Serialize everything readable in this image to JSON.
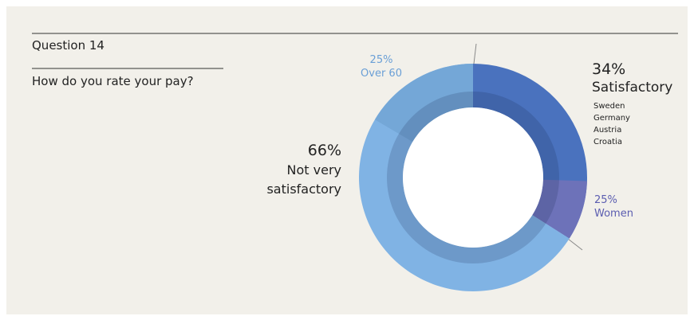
{
  "chart_data": {
    "type": "donut",
    "title": "Question 14",
    "subtitle": "How do you rate your pay?",
    "categories": [
      "Satisfactory",
      "Not very satisfactory"
    ],
    "values": [
      34,
      66
    ],
    "value_labels": [
      "34%",
      "66%"
    ],
    "colors": [
      "#4a72be",
      "#80b3e4"
    ],
    "countries": [
      "Sweden",
      "Germany",
      "Austria",
      "Croatia"
    ],
    "subgroup_names": [
      "Women",
      "Over 60"
    ],
    "subgroup_values": [
      25,
      25
    ],
    "subgroup_value_labels": [
      "25%",
      "25%"
    ],
    "subgroup_colors": [
      "#6d72b9",
      "#74a7d7"
    ]
  }
}
